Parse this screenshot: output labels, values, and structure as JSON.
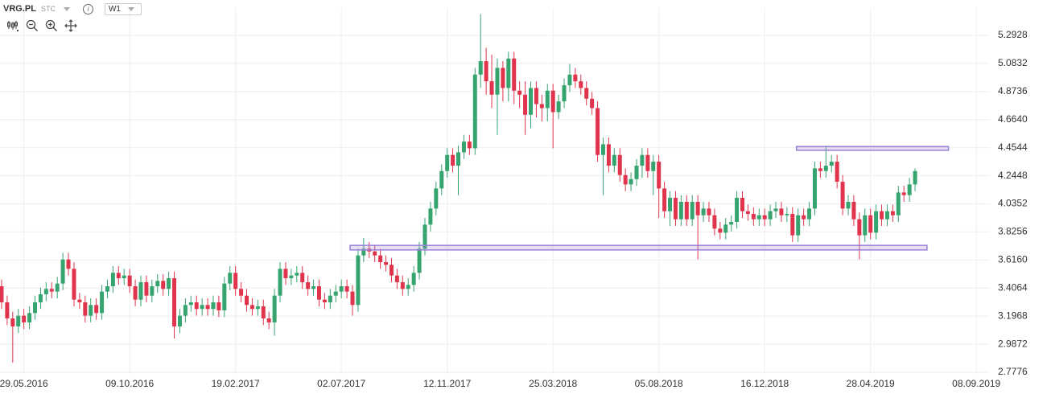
{
  "chart_data": {
    "type": "candlestick",
    "title": "VRG.PL",
    "source": "STC",
    "timeframe": "W1",
    "x": [
      "01.05.2016",
      "08.05.2016",
      "15.05.2016",
      "22.05.2016",
      "29.05.2016",
      "05.06.2016",
      "12.06.2016",
      "19.06.2016",
      "26.06.2016",
      "03.07.2016",
      "10.07.2016",
      "17.07.2016",
      "24.07.2016",
      "31.07.2016",
      "07.08.2016",
      "14.08.2016",
      "21.08.2016",
      "28.08.2016",
      "04.09.2016",
      "11.09.2016",
      "18.09.2016",
      "25.09.2016",
      "02.10.2016",
      "09.10.2016",
      "16.10.2016",
      "23.10.2016",
      "30.10.2016",
      "06.11.2016",
      "13.11.2016",
      "20.11.2016",
      "27.11.2016",
      "04.12.2016",
      "11.12.2016",
      "18.12.2016",
      "25.12.2016",
      "01.01.2017",
      "08.01.2017",
      "15.01.2017",
      "22.01.2017",
      "29.01.2017",
      "05.02.2017",
      "12.02.2017",
      "19.02.2017",
      "26.02.2017",
      "05.03.2017",
      "12.03.2017",
      "19.03.2017",
      "26.03.2017",
      "02.04.2017",
      "09.04.2017",
      "16.04.2017",
      "23.04.2017",
      "30.04.2017",
      "07.05.2017",
      "14.05.2017",
      "21.05.2017",
      "28.05.2017",
      "04.06.2017",
      "11.06.2017",
      "18.06.2017",
      "25.06.2017",
      "02.07.2017",
      "09.07.2017",
      "16.07.2017",
      "23.07.2017",
      "30.07.2017",
      "06.08.2017",
      "13.08.2017",
      "20.08.2017",
      "27.08.2017",
      "03.09.2017",
      "10.09.2017",
      "17.09.2017",
      "24.09.2017",
      "01.10.2017",
      "08.10.2017",
      "15.10.2017",
      "22.10.2017",
      "29.10.2017",
      "05.11.2017",
      "12.11.2017",
      "19.11.2017",
      "26.11.2017",
      "03.12.2017",
      "10.12.2017",
      "17.12.2017",
      "24.12.2017",
      "31.12.2017",
      "07.01.2018",
      "14.01.2018",
      "21.01.2018",
      "28.01.2018",
      "04.02.2018",
      "11.02.2018",
      "18.02.2018",
      "25.02.2018",
      "04.03.2018",
      "11.03.2018",
      "18.03.2018",
      "25.03.2018",
      "01.04.2018",
      "08.04.2018",
      "15.04.2018",
      "22.04.2018",
      "29.04.2018",
      "06.05.2018",
      "13.05.2018",
      "20.05.2018",
      "27.05.2018",
      "03.06.2018",
      "10.06.2018",
      "17.06.2018",
      "24.06.2018",
      "01.07.2018",
      "08.07.2018",
      "15.07.2018",
      "22.07.2018",
      "29.07.2018",
      "05.08.2018",
      "12.08.2018",
      "19.08.2018",
      "26.08.2018",
      "02.09.2018",
      "09.09.2018",
      "16.09.2018",
      "23.09.2018",
      "30.09.2018",
      "07.10.2018",
      "14.10.2018",
      "21.10.2018",
      "28.10.2018",
      "04.11.2018",
      "11.11.2018",
      "18.11.2018",
      "25.11.2018",
      "02.12.2018",
      "09.12.2018",
      "16.12.2018",
      "23.12.2018",
      "30.12.2018",
      "06.01.2019",
      "13.01.2019",
      "20.01.2019",
      "27.01.2019",
      "03.02.2019",
      "10.02.2019",
      "17.02.2019",
      "24.02.2019",
      "03.03.2019",
      "10.03.2019",
      "17.03.2019",
      "24.03.2019",
      "31.03.2019",
      "07.04.2019",
      "14.04.2019",
      "21.04.2019",
      "28.04.2019",
      "05.05.2019",
      "12.05.2019",
      "19.05.2019",
      "26.05.2019",
      "02.06.2019",
      "09.06.2019",
      "16.06.2019",
      "23.06.2019"
    ],
    "open": [
      3.42,
      3.3,
      3.18,
      3.12,
      3.2,
      3.15,
      3.22,
      3.3,
      3.36,
      3.4,
      3.38,
      3.44,
      3.62,
      3.55,
      3.32,
      3.3,
      3.2,
      3.28,
      3.22,
      3.38,
      3.42,
      3.52,
      3.48,
      3.5,
      3.42,
      3.32,
      3.45,
      3.35,
      3.42,
      3.46,
      3.4,
      3.48,
      3.12,
      3.2,
      3.28,
      3.3,
      3.25,
      3.28,
      3.25,
      3.3,
      3.24,
      3.44,
      3.52,
      3.4,
      3.35,
      3.28,
      3.25,
      3.27,
      3.18,
      3.15,
      3.35,
      3.55,
      3.48,
      3.5,
      3.52,
      3.45,
      3.4,
      3.42,
      3.32,
      3.3,
      3.35,
      3.38,
      3.42,
      3.38,
      3.28,
      3.65,
      3.7,
      3.68,
      3.65,
      3.6,
      3.58,
      3.5,
      3.45,
      3.4,
      3.43,
      3.52,
      3.7,
      3.88,
      4.0,
      4.15,
      4.28,
      4.4,
      4.32,
      4.42,
      4.5,
      4.45,
      5.0,
      5.1,
      4.95,
      4.85,
      5.05,
      4.9,
      5.12,
      4.88,
      4.85,
      4.7,
      4.9,
      4.78,
      4.75,
      4.88,
      4.72,
      4.8,
      4.92,
      5.0,
      4.95,
      4.9,
      4.82,
      4.75,
      4.4,
      4.48,
      4.32,
      4.4,
      4.25,
      4.18,
      4.22,
      4.32,
      4.4,
      4.28,
      4.35,
      4.15,
      3.98,
      4.08,
      3.92,
      4.05,
      3.92,
      4.05,
      3.95,
      4.0,
      3.95,
      3.85,
      3.82,
      3.88,
      3.9,
      4.08,
      3.98,
      3.96,
      3.92,
      3.95,
      3.92,
      3.98,
      4.0,
      3.95,
      3.96,
      3.8,
      3.95,
      3.92,
      4.0,
      4.3,
      4.28,
      4.32,
      4.35,
      4.2,
      4.0,
      4.05,
      3.92,
      3.8,
      3.95,
      3.82,
      3.98,
      3.92,
      3.98,
      3.95,
      4.12,
      4.1,
      4.18
    ],
    "high": [
      3.47,
      3.35,
      3.23,
      3.25,
      3.25,
      3.27,
      3.35,
      3.41,
      3.45,
      3.45,
      3.49,
      3.67,
      3.67,
      3.6,
      3.37,
      3.35,
      3.33,
      3.33,
      3.43,
      3.47,
      3.57,
      3.57,
      3.55,
      3.55,
      3.47,
      3.5,
      3.5,
      3.47,
      3.51,
      3.51,
      3.53,
      3.53,
      3.25,
      3.33,
      3.35,
      3.35,
      3.33,
      3.33,
      3.35,
      3.35,
      3.49,
      3.57,
      3.57,
      3.45,
      3.4,
      3.33,
      3.32,
      3.32,
      3.23,
      3.4,
      3.6,
      3.6,
      3.55,
      3.57,
      3.57,
      3.5,
      3.47,
      3.47,
      3.37,
      3.4,
      3.43,
      3.47,
      3.47,
      3.43,
      3.7,
      3.78,
      3.75,
      3.73,
      3.7,
      3.65,
      3.63,
      3.55,
      3.5,
      3.48,
      3.57,
      3.75,
      3.93,
      4.05,
      4.2,
      4.33,
      4.45,
      4.45,
      4.47,
      4.55,
      4.55,
      5.05,
      5.45,
      5.2,
      5.15,
      5.12,
      5.1,
      5.17,
      5.17,
      4.95,
      4.95,
      4.95,
      4.95,
      4.85,
      4.93,
      4.93,
      4.85,
      4.97,
      5.08,
      5.05,
      5.0,
      4.95,
      4.87,
      4.8,
      4.53,
      4.53,
      4.45,
      4.45,
      4.3,
      4.27,
      4.37,
      4.45,
      4.45,
      4.4,
      4.4,
      4.2,
      4.13,
      4.13,
      4.1,
      4.1,
      4.1,
      4.1,
      4.05,
      4.05,
      4.0,
      3.9,
      3.93,
      3.95,
      4.13,
      4.13,
      4.03,
      4.01,
      4.0,
      4.0,
      4.03,
      4.05,
      4.05,
      4.01,
      4.01,
      4.0,
      4.0,
      4.05,
      4.35,
      4.35,
      4.47,
      4.4,
      4.4,
      4.25,
      4.1,
      4.1,
      3.97,
      4.0,
      4.0,
      4.03,
      4.03,
      4.03,
      4.03,
      4.17,
      4.17,
      4.23,
      4.3
    ],
    "low": [
      3.25,
      3.13,
      2.85,
      3.07,
      3.1,
      3.1,
      3.17,
      3.25,
      3.31,
      3.33,
      3.33,
      3.39,
      3.5,
      3.27,
      3.25,
      3.15,
      3.15,
      3.17,
      3.17,
      3.33,
      3.37,
      3.43,
      3.43,
      3.37,
      3.27,
      3.27,
      3.3,
      3.3,
      3.37,
      3.35,
      3.35,
      3.03,
      3.07,
      3.15,
      3.23,
      3.2,
      3.2,
      3.2,
      3.2,
      3.19,
      3.19,
      3.39,
      3.35,
      3.3,
      3.23,
      3.2,
      3.2,
      3.13,
      3.1,
      3.05,
      3.3,
      3.43,
      3.43,
      3.45,
      3.4,
      3.35,
      3.35,
      3.27,
      3.25,
      3.25,
      3.3,
      3.33,
      3.33,
      3.2,
      3.23,
      3.6,
      3.63,
      3.6,
      3.55,
      3.53,
      3.45,
      3.4,
      3.35,
      3.35,
      3.38,
      3.47,
      3.65,
      3.83,
      3.95,
      4.1,
      4.23,
      4.27,
      4.1,
      4.37,
      4.4,
      4.4,
      4.9,
      4.85,
      4.75,
      4.55,
      4.8,
      4.8,
      4.78,
      4.75,
      4.55,
      4.6,
      4.68,
      4.65,
      4.65,
      4.45,
      4.67,
      4.75,
      4.87,
      4.9,
      4.85,
      4.77,
      4.7,
      4.35,
      4.1,
      4.27,
      4.27,
      4.2,
      4.13,
      4.13,
      4.17,
      4.23,
      4.23,
      4.1,
      3.93,
      3.93,
      3.87,
      3.87,
      3.87,
      3.87,
      3.87,
      3.62,
      3.9,
      3.9,
      3.8,
      3.77,
      3.77,
      3.83,
      3.85,
      3.93,
      3.91,
      3.87,
      3.87,
      3.87,
      3.87,
      3.93,
      3.9,
      3.9,
      3.75,
      3.75,
      3.87,
      3.87,
      3.95,
      4.23,
      4.23,
      4.27,
      4.15,
      3.95,
      3.95,
      3.87,
      3.62,
      3.75,
      3.77,
      3.77,
      3.87,
      3.87,
      3.9,
      3.9,
      4.05,
      4.05,
      4.13
    ],
    "close": [
      3.3,
      3.18,
      3.12,
      3.2,
      3.15,
      3.22,
      3.3,
      3.36,
      3.4,
      3.38,
      3.44,
      3.62,
      3.55,
      3.32,
      3.3,
      3.2,
      3.28,
      3.22,
      3.38,
      3.42,
      3.52,
      3.48,
      3.5,
      3.42,
      3.32,
      3.45,
      3.35,
      3.42,
      3.46,
      3.4,
      3.48,
      3.12,
      3.2,
      3.28,
      3.3,
      3.25,
      3.28,
      3.25,
      3.3,
      3.24,
      3.44,
      3.52,
      3.4,
      3.35,
      3.28,
      3.25,
      3.27,
      3.18,
      3.15,
      3.35,
      3.55,
      3.48,
      3.5,
      3.52,
      3.45,
      3.4,
      3.42,
      3.32,
      3.3,
      3.35,
      3.38,
      3.42,
      3.38,
      3.28,
      3.65,
      3.7,
      3.68,
      3.65,
      3.6,
      3.58,
      3.5,
      3.45,
      3.4,
      3.43,
      3.52,
      3.7,
      3.88,
      4.0,
      4.15,
      4.28,
      4.4,
      4.32,
      4.42,
      4.5,
      4.45,
      5.0,
      5.1,
      4.95,
      4.85,
      5.05,
      4.9,
      5.12,
      4.88,
      4.85,
      4.7,
      4.9,
      4.78,
      4.75,
      4.88,
      4.72,
      4.8,
      4.92,
      5.0,
      4.95,
      4.9,
      4.82,
      4.75,
      4.4,
      4.48,
      4.32,
      4.4,
      4.25,
      4.18,
      4.22,
      4.32,
      4.4,
      4.28,
      4.35,
      4.15,
      3.98,
      4.08,
      3.92,
      4.05,
      3.92,
      4.05,
      3.95,
      4.0,
      3.95,
      3.85,
      3.82,
      3.88,
      3.9,
      4.08,
      3.98,
      3.96,
      3.92,
      3.95,
      3.92,
      3.98,
      4.0,
      3.95,
      3.96,
      3.8,
      3.95,
      3.92,
      4.0,
      4.3,
      4.28,
      4.32,
      4.35,
      4.2,
      4.0,
      4.05,
      3.92,
      3.8,
      3.95,
      3.82,
      3.98,
      3.92,
      3.98,
      3.95,
      4.12,
      4.1,
      4.18,
      4.28
    ],
    "up_color": "#35a46e",
    "down_color": "#e0344c",
    "zones": [
      {
        "x": [
          "25.01.2019",
          "04.08.2019"
        ],
        "y": [
          4.435,
          4.463
        ]
      },
      {
        "x": [
          "13.07.2017",
          "08.07.2019"
        ],
        "y": [
          3.691,
          3.725
        ]
      }
    ],
    "zone_color": "#9a80d8",
    "xlim": [
      "29.04.2016",
      "25.09.2019"
    ],
    "xticks": [
      "29.05.2016",
      "09.10.2016",
      "19.02.2017",
      "02.07.2017",
      "12.11.2017",
      "25.03.2018",
      "05.08.2018",
      "16.12.2018",
      "28.04.2019",
      "08.09.2019"
    ],
    "ylim": [
      2.7656,
      5.4969
    ],
    "yticks": [
      5.2928,
      5.0832,
      4.8736,
      {
        "value": 4.664,
        "label": "4.6640"
      },
      4.4544,
      4.2448,
      4.0352,
      3.8256,
      {
        "value": 3.616,
        "label": "3.6160"
      },
      3.4064,
      3.1968,
      2.9872,
      2.7776
    ],
    "grid": true
  }
}
